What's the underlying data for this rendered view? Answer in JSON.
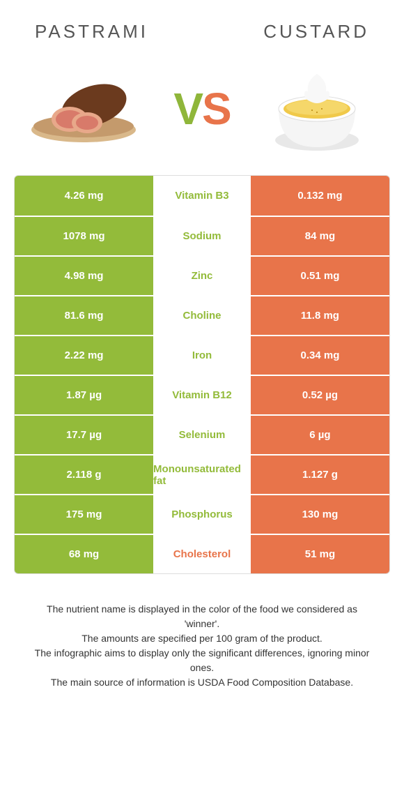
{
  "colors": {
    "left": "#93bb3a",
    "right": "#e8744a",
    "mid_bg": "#ffffff"
  },
  "header": {
    "left_title": "pastrami",
    "right_title": "custard",
    "vs_v": "V",
    "vs_s": "S"
  },
  "rows": [
    {
      "left": "4.26 mg",
      "mid": "Vitamin B3",
      "right": "0.132 mg",
      "winner": "left"
    },
    {
      "left": "1078 mg",
      "mid": "Sodium",
      "right": "84 mg",
      "winner": "left"
    },
    {
      "left": "4.98 mg",
      "mid": "Zinc",
      "right": "0.51 mg",
      "winner": "left"
    },
    {
      "left": "81.6 mg",
      "mid": "Choline",
      "right": "11.8 mg",
      "winner": "left"
    },
    {
      "left": "2.22 mg",
      "mid": "Iron",
      "right": "0.34 mg",
      "winner": "left"
    },
    {
      "left": "1.87 µg",
      "mid": "Vitamin B12",
      "right": "0.52 µg",
      "winner": "left"
    },
    {
      "left": "17.7 µg",
      "mid": "Selenium",
      "right": "6 µg",
      "winner": "left"
    },
    {
      "left": "2.118 g",
      "mid": "Monounsaturated fat",
      "right": "1.127 g",
      "winner": "left"
    },
    {
      "left": "175 mg",
      "mid": "Phosphorus",
      "right": "130 mg",
      "winner": "left"
    },
    {
      "left": "68 mg",
      "mid": "Cholesterol",
      "right": "51 mg",
      "winner": "right"
    }
  ],
  "footer": {
    "line1": "The nutrient name is displayed in the color of the food we considered as 'winner'.",
    "line2": "The amounts are specified per 100 gram of the product.",
    "line3": "The infographic aims to display only the significant differences, ignoring minor ones.",
    "line4": "The main source of information is USDA Food Composition Database."
  }
}
